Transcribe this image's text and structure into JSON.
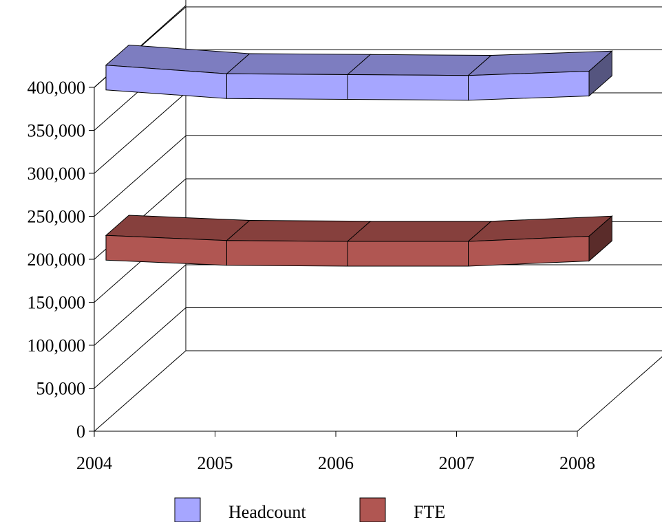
{
  "chart_data": {
    "type": "line",
    "render": "3d-ribbon",
    "title": "",
    "xlabel": "",
    "ylabel": "",
    "categories": [
      "2004",
      "2005",
      "2006",
      "2007",
      "2008"
    ],
    "ylim": [
      0,
      400000
    ],
    "y_ticks": [
      0,
      50000,
      100000,
      150000,
      200000,
      250000,
      300000,
      350000,
      400000
    ],
    "y_tick_labels": [
      "0",
      "50,000",
      "100,000",
      "150,000",
      "200,000",
      "250,000",
      "300,000",
      "350,000",
      "400,000"
    ],
    "grid": true,
    "legend_position": "bottom",
    "series": [
      {
        "name": "Headcount",
        "values": [
          425000,
          415000,
          414000,
          413000,
          418000
        ],
        "color": "#a6a6ff",
        "top_color": "#7d7dc0",
        "side_color": "#55557f"
      },
      {
        "name": "FTE",
        "values": [
          227000,
          221000,
          220000,
          220000,
          226000
        ],
        "color": "#b05652",
        "top_color": "#86403d",
        "side_color": "#5a2c2a"
      }
    ]
  }
}
